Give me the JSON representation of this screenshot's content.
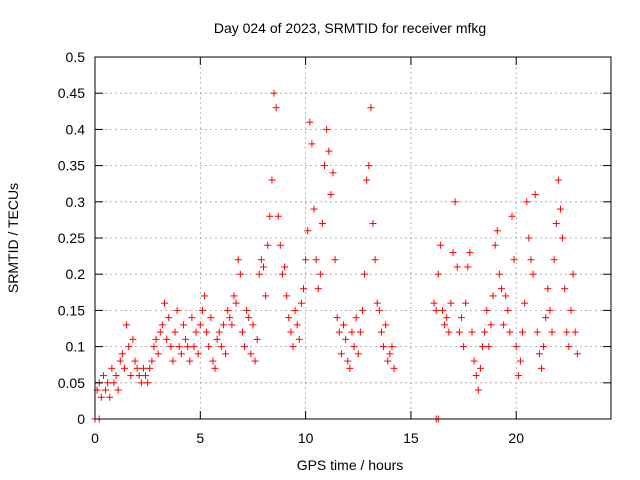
{
  "chart_data": {
    "type": "scatter",
    "title": "Day 024 of 2023, SRMTID for receiver mfkg",
    "xlabel": "GPS time / hours",
    "ylabel": "SRMTID / TECUs",
    "xlim": [
      0,
      24.5
    ],
    "ylim": [
      0,
      0.5
    ],
    "xticks": [
      0,
      5,
      10,
      15,
      20
    ],
    "yticks": [
      0,
      0.05,
      0.1,
      0.15,
      0.2,
      0.25,
      0.3,
      0.35,
      0.4,
      0.45,
      0.5
    ],
    "xtick_labels": [
      "0",
      "5",
      "10",
      "15",
      "20"
    ],
    "ytick_labels": [
      "0",
      "0.05",
      "0.1",
      "0.15",
      "0.2",
      "0.25",
      "0.3",
      "0.35",
      "0.4",
      "0.45",
      "0.5"
    ],
    "grid": true,
    "marker": "+",
    "color": "#ff0000",
    "series": [
      {
        "name": "SRMTID",
        "points": [
          [
            0.0,
            0.0
          ],
          [
            0.2,
            0.0
          ],
          [
            16.2,
            0.0
          ],
          [
            16.3,
            0.0
          ],
          [
            0.1,
            0.04
          ],
          [
            0.2,
            0.05
          ],
          [
            0.3,
            0.03
          ],
          [
            0.4,
            0.06
          ],
          [
            0.5,
            0.04
          ],
          [
            0.6,
            0.05
          ],
          [
            0.7,
            0.03
          ],
          [
            0.8,
            0.07
          ],
          [
            0.9,
            0.05
          ],
          [
            1.0,
            0.06
          ],
          [
            1.1,
            0.04
          ],
          [
            1.2,
            0.08
          ],
          [
            1.3,
            0.09
          ],
          [
            1.4,
            0.07
          ],
          [
            1.5,
            0.13
          ],
          [
            1.6,
            0.1
          ],
          [
            1.7,
            0.06
          ],
          [
            1.8,
            0.11
          ],
          [
            1.9,
            0.08
          ],
          [
            2.0,
            0.07
          ],
          [
            2.1,
            0.06
          ],
          [
            2.2,
            0.05
          ],
          [
            2.3,
            0.07
          ],
          [
            2.4,
            0.06
          ],
          [
            2.5,
            0.05
          ],
          [
            2.6,
            0.07
          ],
          [
            2.7,
            0.08
          ],
          [
            2.8,
            0.1
          ],
          [
            2.9,
            0.11
          ],
          [
            3.0,
            0.09
          ],
          [
            3.1,
            0.12
          ],
          [
            3.2,
            0.13
          ],
          [
            3.3,
            0.16
          ],
          [
            3.4,
            0.11
          ],
          [
            3.5,
            0.14
          ],
          [
            3.6,
            0.1
          ],
          [
            3.7,
            0.08
          ],
          [
            3.8,
            0.12
          ],
          [
            3.9,
            0.15
          ],
          [
            4.0,
            0.1
          ],
          [
            4.1,
            0.09
          ],
          [
            4.2,
            0.13
          ],
          [
            4.3,
            0.11
          ],
          [
            4.4,
            0.1
          ],
          [
            4.5,
            0.08
          ],
          [
            4.6,
            0.14
          ],
          [
            4.7,
            0.1
          ],
          [
            4.8,
            0.12
          ],
          [
            4.9,
            0.09
          ],
          [
            5.0,
            0.13
          ],
          [
            5.1,
            0.15
          ],
          [
            5.2,
            0.17
          ],
          [
            5.3,
            0.12
          ],
          [
            5.4,
            0.1
          ],
          [
            5.5,
            0.14
          ],
          [
            5.6,
            0.08
          ],
          [
            5.7,
            0.07
          ],
          [
            5.8,
            0.11
          ],
          [
            5.9,
            0.12
          ],
          [
            6.0,
            0.1
          ],
          [
            6.1,
            0.13
          ],
          [
            6.2,
            0.09
          ],
          [
            6.3,
            0.15
          ],
          [
            6.4,
            0.14
          ],
          [
            6.5,
            0.13
          ],
          [
            6.6,
            0.17
          ],
          [
            6.7,
            0.16
          ],
          [
            6.8,
            0.22
          ],
          [
            6.9,
            0.2
          ],
          [
            7.0,
            0.12
          ],
          [
            7.1,
            0.1
          ],
          [
            7.2,
            0.15
          ],
          [
            7.3,
            0.14
          ],
          [
            7.4,
            0.09
          ],
          [
            7.5,
            0.13
          ],
          [
            7.6,
            0.08
          ],
          [
            7.7,
            0.11
          ],
          [
            7.8,
            0.2
          ],
          [
            7.9,
            0.22
          ],
          [
            8.0,
            0.21
          ],
          [
            8.1,
            0.17
          ],
          [
            8.2,
            0.24
          ],
          [
            8.3,
            0.28
          ],
          [
            8.4,
            0.33
          ],
          [
            8.5,
            0.45
          ],
          [
            8.6,
            0.43
          ],
          [
            8.7,
            0.28
          ],
          [
            8.8,
            0.24
          ],
          [
            8.9,
            0.2
          ],
          [
            9.0,
            0.21
          ],
          [
            9.1,
            0.17
          ],
          [
            9.2,
            0.14
          ],
          [
            9.3,
            0.12
          ],
          [
            9.4,
            0.1
          ],
          [
            9.5,
            0.15
          ],
          [
            9.6,
            0.13
          ],
          [
            9.7,
            0.11
          ],
          [
            9.8,
            0.16
          ],
          [
            9.9,
            0.18
          ],
          [
            10.0,
            0.22
          ],
          [
            10.1,
            0.26
          ],
          [
            10.2,
            0.41
          ],
          [
            10.3,
            0.38
          ],
          [
            10.4,
            0.29
          ],
          [
            10.5,
            0.22
          ],
          [
            10.6,
            0.18
          ],
          [
            10.7,
            0.2
          ],
          [
            10.8,
            0.27
          ],
          [
            10.9,
            0.35
          ],
          [
            11.0,
            0.4
          ],
          [
            11.1,
            0.37
          ],
          [
            11.2,
            0.31
          ],
          [
            11.3,
            0.34
          ],
          [
            11.4,
            0.22
          ],
          [
            11.5,
            0.14
          ],
          [
            11.6,
            0.12
          ],
          [
            11.7,
            0.09
          ],
          [
            11.8,
            0.13
          ],
          [
            11.9,
            0.11
          ],
          [
            12.0,
            0.08
          ],
          [
            12.1,
            0.07
          ],
          [
            12.2,
            0.12
          ],
          [
            12.3,
            0.1
          ],
          [
            12.4,
            0.14
          ],
          [
            12.5,
            0.09
          ],
          [
            12.6,
            0.12
          ],
          [
            12.7,
            0.15
          ],
          [
            12.8,
            0.2
          ],
          [
            12.9,
            0.33
          ],
          [
            13.0,
            0.35
          ],
          [
            13.1,
            0.43
          ],
          [
            13.2,
            0.27
          ],
          [
            13.3,
            0.22
          ],
          [
            13.4,
            0.16
          ],
          [
            13.5,
            0.15
          ],
          [
            13.6,
            0.12
          ],
          [
            13.7,
            0.1
          ],
          [
            13.8,
            0.13
          ],
          [
            13.9,
            0.08
          ],
          [
            14.0,
            0.09
          ],
          [
            14.1,
            0.1
          ],
          [
            14.2,
            0.07
          ],
          [
            16.1,
            0.16
          ],
          [
            16.2,
            0.15
          ],
          [
            16.3,
            0.2
          ],
          [
            16.4,
            0.24
          ],
          [
            16.5,
            0.15
          ],
          [
            16.6,
            0.13
          ],
          [
            16.7,
            0.14
          ],
          [
            16.8,
            0.12
          ],
          [
            16.9,
            0.16
          ],
          [
            17.0,
            0.23
          ],
          [
            17.1,
            0.3
          ],
          [
            17.2,
            0.21
          ],
          [
            17.3,
            0.12
          ],
          [
            17.4,
            0.14
          ],
          [
            17.5,
            0.1
          ],
          [
            17.6,
            0.16
          ],
          [
            17.7,
            0.21
          ],
          [
            17.8,
            0.23
          ],
          [
            17.9,
            0.12
          ],
          [
            18.0,
            0.08
          ],
          [
            18.1,
            0.06
          ],
          [
            18.2,
            0.04
          ],
          [
            18.3,
            0.07
          ],
          [
            18.4,
            0.1
          ],
          [
            18.5,
            0.12
          ],
          [
            18.6,
            0.15
          ],
          [
            18.7,
            0.1
          ],
          [
            18.8,
            0.13
          ],
          [
            18.9,
            0.17
          ],
          [
            19.0,
            0.24
          ],
          [
            19.1,
            0.26
          ],
          [
            19.2,
            0.2
          ],
          [
            19.3,
            0.18
          ],
          [
            19.4,
            0.13
          ],
          [
            19.5,
            0.17
          ],
          [
            19.6,
            0.15
          ],
          [
            19.7,
            0.12
          ],
          [
            19.8,
            0.28
          ],
          [
            19.9,
            0.22
          ],
          [
            20.0,
            0.1
          ],
          [
            20.1,
            0.06
          ],
          [
            20.2,
            0.08
          ],
          [
            20.3,
            0.12
          ],
          [
            20.4,
            0.16
          ],
          [
            20.5,
            0.3
          ],
          [
            20.6,
            0.25
          ],
          [
            20.7,
            0.22
          ],
          [
            20.8,
            0.2
          ],
          [
            20.9,
            0.31
          ],
          [
            21.0,
            0.12
          ],
          [
            21.1,
            0.09
          ],
          [
            21.2,
            0.07
          ],
          [
            21.3,
            0.1
          ],
          [
            21.4,
            0.14
          ],
          [
            21.5,
            0.18
          ],
          [
            21.6,
            0.15
          ],
          [
            21.7,
            0.12
          ],
          [
            21.8,
            0.22
          ],
          [
            21.9,
            0.27
          ],
          [
            22.0,
            0.33
          ],
          [
            22.1,
            0.29
          ],
          [
            22.2,
            0.25
          ],
          [
            22.3,
            0.18
          ],
          [
            22.4,
            0.12
          ],
          [
            22.5,
            0.1
          ],
          [
            22.6,
            0.15
          ],
          [
            22.7,
            0.2
          ],
          [
            22.8,
            0.12
          ],
          [
            22.9,
            0.09
          ]
        ]
      }
    ]
  }
}
